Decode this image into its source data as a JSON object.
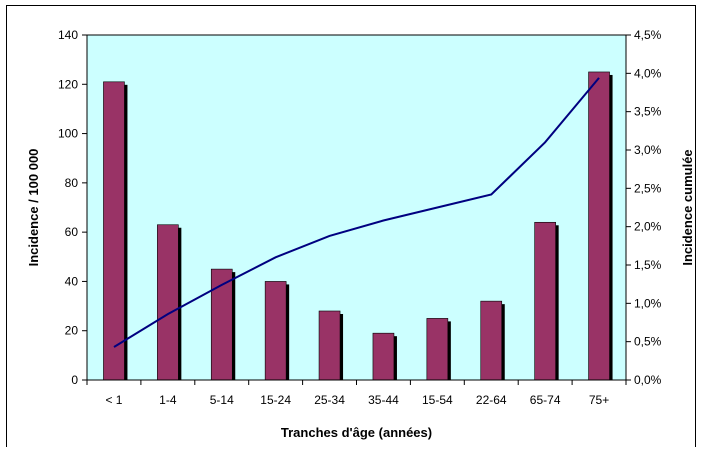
{
  "chart_data": {
    "type": "bar",
    "title": "",
    "xlabel": "Tranches d'âge (années)",
    "ylabel": "Incidence / 100 000",
    "y2label": "Incidence cumulée",
    "categories": [
      "< 1",
      "1-4",
      "5-14",
      "15-24",
      "25-34",
      "35-44",
      "15-54",
      "22-64",
      "65-74",
      "75+"
    ],
    "series": [
      {
        "type": "bar",
        "axis": "left",
        "values": [
          121,
          63,
          45,
          40,
          28,
          19,
          25,
          32,
          64,
          125
        ]
      },
      {
        "type": "line",
        "axis": "right",
        "values": [
          0.43,
          0.86,
          1.24,
          1.6,
          1.88,
          2.08,
          2.25,
          2.42,
          3.1,
          3.94
        ]
      }
    ],
    "ylim": [
      0,
      140
    ],
    "y2lim": [
      0,
      4.5
    ],
    "yticks": [
      "0",
      "20",
      "40",
      "60",
      "80",
      "100",
      "120",
      "140"
    ],
    "y2ticks": [
      "0,0%",
      "0,5%",
      "1,0%",
      "1,5%",
      "2,0%",
      "2,5%",
      "3,0%",
      "3,5%",
      "4,0%",
      "4,5%"
    ],
    "colors": {
      "bar": "#993366",
      "bar_shadow": "#000000",
      "line": "#000080",
      "plot_bg": "#ccffff",
      "axis": "#000000"
    },
    "grid": false,
    "legend": "none"
  }
}
